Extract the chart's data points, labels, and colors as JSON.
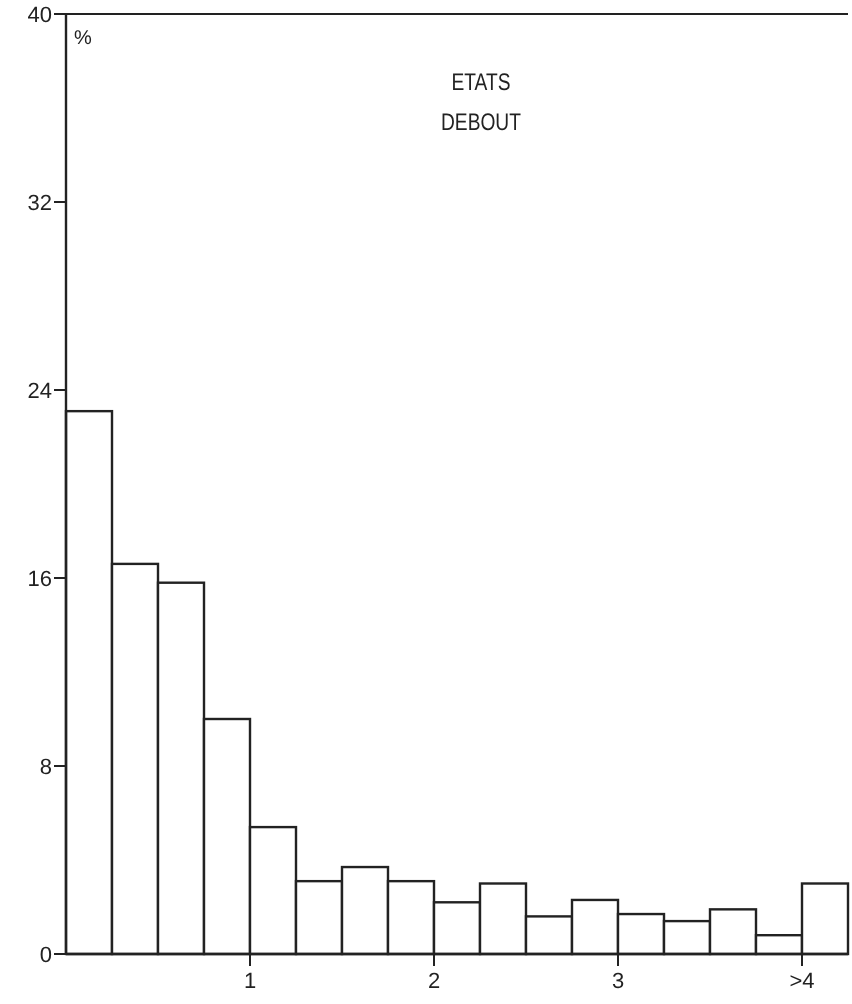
{
  "chart_data": {
    "type": "histogram",
    "title": "ETATS DEBOUT",
    "ylabel": "%",
    "bins": [
      0,
      0.25,
      0.5,
      0.75,
      1,
      1.25,
      1.5,
      1.75,
      2,
      2.25,
      2.5,
      2.75,
      3,
      3.25,
      3.5,
      3.75,
      4,
      4.25
    ],
    "values": [
      23.1,
      16.6,
      15.8,
      10.0,
      5.4,
      3.1,
      3.7,
      3.1,
      2.2,
      3.0,
      1.6,
      2.3,
      1.7,
      1.4,
      1.9,
      0.8,
      3.0
    ],
    "color": "#ffffff",
    "xlim": [
      0,
      4.25
    ],
    "xticks": [
      1,
      2,
      3,
      {
        "value": 4,
        "label": ">4"
      }
    ],
    "ylim": [
      0,
      40
    ],
    "yticks": [
      0,
      8,
      16,
      24,
      32,
      40
    ],
    "grid": false
  }
}
